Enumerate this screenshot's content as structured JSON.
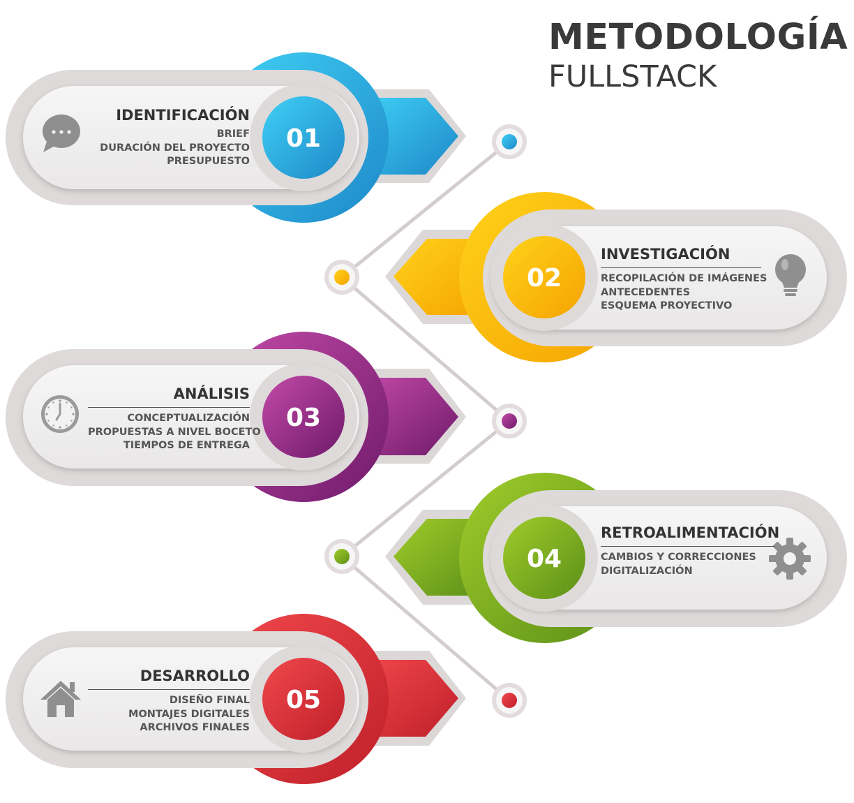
{
  "title": {
    "main": "METODOLOGÍA",
    "sub": "FULLSTACK"
  },
  "colors": {
    "blue": "#27b6e6",
    "yellow": "#ffbb00",
    "purple": "#a0308a",
    "green": "#86b520",
    "red": "#e0353a",
    "connector": "#cfc8c8",
    "card": "#f1f0f0",
    "text": "#333333"
  },
  "steps": [
    {
      "number": "01",
      "title": "IDENTIFICACIÓN",
      "color": "blue",
      "icon": "chat-bubble-icon",
      "items": [
        "BRIEF",
        "DURACIÓN DEL PROYECTO",
        "PRESUPUESTO"
      ]
    },
    {
      "number": "02",
      "title": "INVESTIGACIÓN",
      "color": "yellow",
      "icon": "lightbulb-icon",
      "items": [
        "RECOPILACIÓN DE IMÁGENES",
        "ANTECEDENTES",
        "ESQUEMA PROYECTIVO"
      ]
    },
    {
      "number": "03",
      "title": "ANÁLISIS",
      "color": "purple",
      "icon": "clock-icon",
      "items": [
        "CONCEPTUALIZACIÓN",
        "PROPUESTAS A NIVEL BOCETO",
        "TIEMPOS DE ENTREGA"
      ]
    },
    {
      "number": "04",
      "title": "RETROALIMENTACIÓN",
      "color": "green",
      "icon": "gear-icon",
      "items": [
        "CAMBIOS Y CORRECCIONES",
        "DIGITALIZACIÓN"
      ]
    },
    {
      "number": "05",
      "title": "DESARROLLO",
      "color": "red",
      "icon": "house-icon",
      "items": [
        "DISEÑO FINAL",
        "MONTAJES DIGITALES",
        "ARCHIVOS FINALES"
      ]
    }
  ]
}
